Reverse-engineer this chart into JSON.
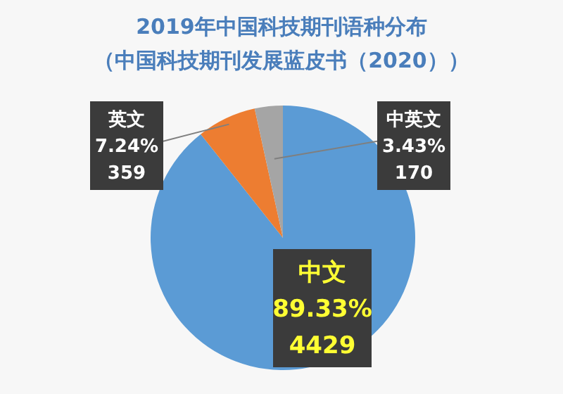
{
  "chart_data": {
    "type": "pie",
    "title": "2019年中国科技期刊语种分布",
    "subtitle": "（中国科技期刊发展蓝皮书（2020））",
    "categories": [
      "中文",
      "英文",
      "中英文"
    ],
    "values": [
      89.33,
      7.24,
      3.43
    ],
    "value_labels": [
      "89.33%",
      "7.24%",
      "3.43%"
    ],
    "annotations": [
      "4429",
      "359",
      "170"
    ],
    "colors": [
      "#5b9bd5",
      "#ed7d31",
      "#a5a5a5"
    ]
  }
}
